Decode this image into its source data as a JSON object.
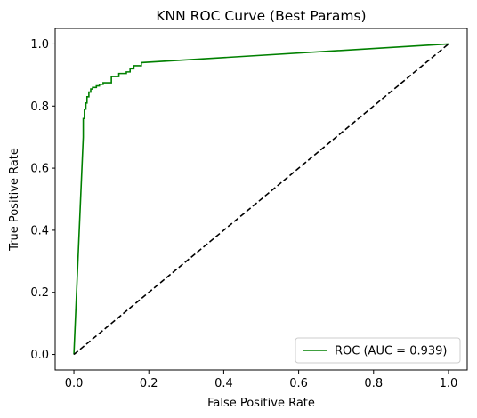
{
  "chart_data": {
    "type": "line",
    "title": "KNN ROC Curve (Best Params)",
    "xlabel": "False Positive Rate",
    "ylabel": "True Positive Rate",
    "xlim": [
      -0.05,
      1.05
    ],
    "ylim": [
      -0.05,
      1.05
    ],
    "xticks": [
      "0.0",
      "0.2",
      "0.4",
      "0.6",
      "0.8",
      "1.0"
    ],
    "yticks": [
      "0.0",
      "0.2",
      "0.4",
      "0.6",
      "0.8",
      "1.0"
    ],
    "grid": false,
    "legend_position": "lower-right",
    "series": [
      {
        "name": "ROC (AUC = 0.939)",
        "color": "#008000",
        "style": "solid",
        "x": [
          0.0,
          0.025,
          0.025,
          0.028,
          0.028,
          0.032,
          0.032,
          0.035,
          0.035,
          0.04,
          0.04,
          0.045,
          0.045,
          0.05,
          0.05,
          0.06,
          0.06,
          0.068,
          0.068,
          0.078,
          0.078,
          0.1,
          0.1,
          0.12,
          0.12,
          0.14,
          0.14,
          0.15,
          0.15,
          0.16,
          0.16,
          0.18,
          0.18,
          1.0
        ],
        "y": [
          0.0,
          0.7,
          0.76,
          0.76,
          0.79,
          0.79,
          0.81,
          0.81,
          0.83,
          0.83,
          0.845,
          0.845,
          0.855,
          0.855,
          0.86,
          0.86,
          0.865,
          0.865,
          0.87,
          0.87,
          0.875,
          0.875,
          0.895,
          0.895,
          0.905,
          0.905,
          0.91,
          0.91,
          0.92,
          0.92,
          0.93,
          0.93,
          0.94,
          1.0
        ]
      },
      {
        "name": "",
        "color": "#000000",
        "style": "dashed",
        "x": [
          0.0,
          1.0
        ],
        "y": [
          0.0,
          1.0
        ]
      }
    ]
  }
}
